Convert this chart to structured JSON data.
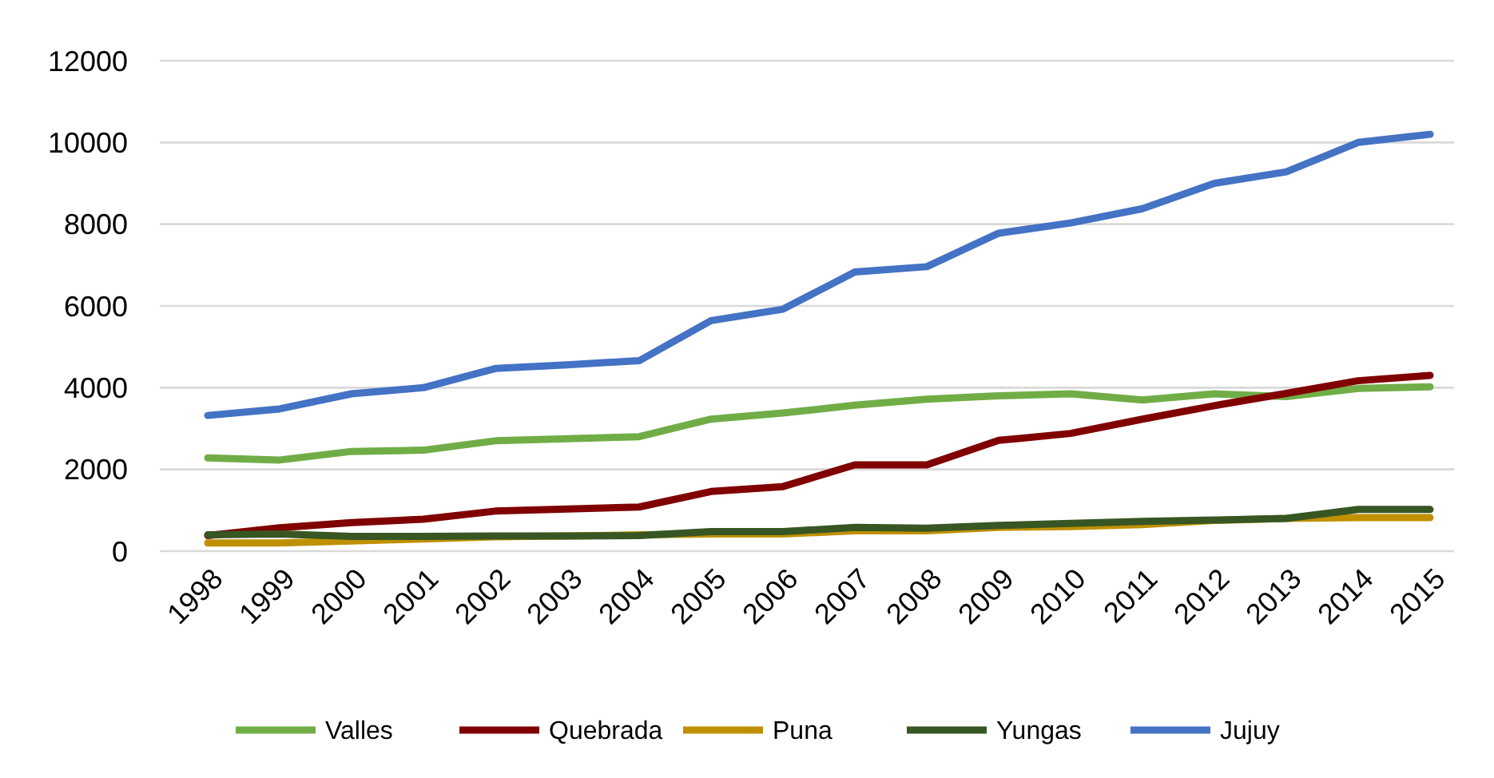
{
  "chart_data": {
    "type": "line",
    "categories": [
      "1998",
      "1999",
      "2000",
      "2001",
      "2002",
      "2003",
      "2004",
      "2005",
      "2006",
      "2007",
      "2008",
      "2009",
      "2010",
      "2011",
      "2012",
      "2013",
      "2014",
      "2015"
    ],
    "series": [
      {
        "name": "Valles",
        "color": "#70ad47",
        "values": [
          2280,
          2230,
          2440,
          2470,
          2700,
          2750,
          2800,
          3230,
          3380,
          3570,
          3720,
          3800,
          3850,
          3700,
          3850,
          3780,
          3980,
          4020
        ]
      },
      {
        "name": "Quebrada",
        "color": "#800000",
        "values": [
          380,
          570,
          700,
          780,
          980,
          1030,
          1080,
          1460,
          1580,
          2110,
          2110,
          2710,
          2880,
          3230,
          3560,
          3860,
          4170,
          4300
        ]
      },
      {
        "name": "Puna",
        "color": "#bf9000",
        "values": [
          200,
          200,
          250,
          300,
          350,
          370,
          400,
          420,
          420,
          500,
          500,
          580,
          600,
          650,
          750,
          800,
          820,
          820
        ]
      },
      {
        "name": "Yungas",
        "color": "#375623",
        "values": [
          400,
          420,
          360,
          360,
          370,
          370,
          380,
          480,
          480,
          580,
          560,
          630,
          680,
          730,
          760,
          800,
          1020,
          1020
        ]
      },
      {
        "name": "Jujuy",
        "color": "#4472c4",
        "values": [
          3320,
          3480,
          3850,
          4000,
          4470,
          4560,
          4660,
          5640,
          5920,
          6830,
          6960,
          7780,
          8030,
          8380,
          9000,
          9280,
          10000,
          10200
        ]
      }
    ],
    "ylim": [
      0,
      12000
    ],
    "yticks": [
      0,
      2000,
      4000,
      6000,
      8000,
      10000,
      12000
    ],
    "grid": "y",
    "legend": "bottom",
    "line_style": "solid",
    "marker": "none"
  }
}
